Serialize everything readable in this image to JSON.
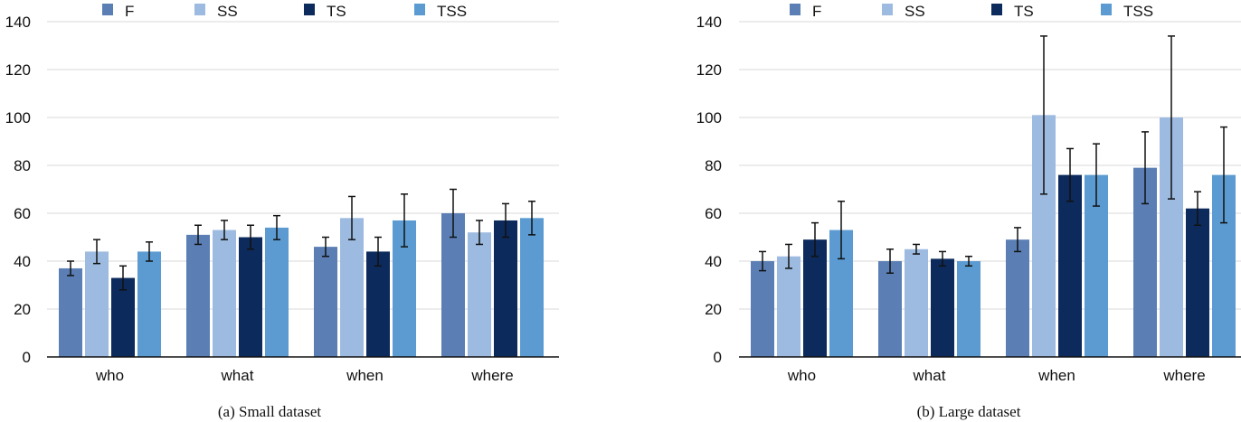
{
  "chart_data": [
    {
      "type": "bar",
      "caption": "(a) Small dataset",
      "categories": [
        "who",
        "what",
        "when",
        "where"
      ],
      "series": [
        {
          "name": "F",
          "color": "#5b7fb5",
          "values": [
            37,
            51,
            46,
            60
          ],
          "errors": [
            3,
            4,
            4,
            10
          ]
        },
        {
          "name": "SS",
          "color": "#9dbbe0",
          "values": [
            44,
            53,
            58,
            52
          ],
          "errors": [
            5,
            4,
            9,
            5
          ]
        },
        {
          "name": "TS",
          "color": "#0c2a5c",
          "values": [
            33,
            50,
            44,
            57
          ],
          "errors": [
            5,
            5,
            6,
            7
          ]
        },
        {
          "name": "TSS",
          "color": "#5b9bd2",
          "values": [
            44,
            54,
            57,
            58
          ],
          "errors": [
            4,
            5,
            11,
            7
          ]
        }
      ],
      "yticks": [
        0,
        20,
        40,
        60,
        80,
        100,
        120,
        140
      ],
      "ylim": [
        0,
        140
      ],
      "grid": true,
      "legend": "top"
    },
    {
      "type": "bar",
      "caption": "(b) Large dataset",
      "categories": [
        "who",
        "what",
        "when",
        "where"
      ],
      "series": [
        {
          "name": "F",
          "color": "#5b7fb5",
          "values": [
            40,
            40,
            49,
            79
          ],
          "errors": [
            4,
            5,
            5,
            15
          ]
        },
        {
          "name": "SS",
          "color": "#9dbbe0",
          "values": [
            42,
            45,
            101,
            100
          ],
          "errors": [
            5,
            2,
            33,
            34
          ]
        },
        {
          "name": "TS",
          "color": "#0c2a5c",
          "values": [
            49,
            41,
            76,
            62
          ],
          "errors": [
            7,
            3,
            11,
            7
          ]
        },
        {
          "name": "TSS",
          "color": "#5b9bd2",
          "values": [
            53,
            40,
            76,
            76
          ],
          "errors": [
            12,
            2,
            13,
            20
          ]
        }
      ],
      "yticks": [
        0,
        20,
        40,
        60,
        80,
        100,
        120,
        140
      ],
      "ylim": [
        0,
        140
      ],
      "grid": true,
      "legend": "top"
    }
  ]
}
